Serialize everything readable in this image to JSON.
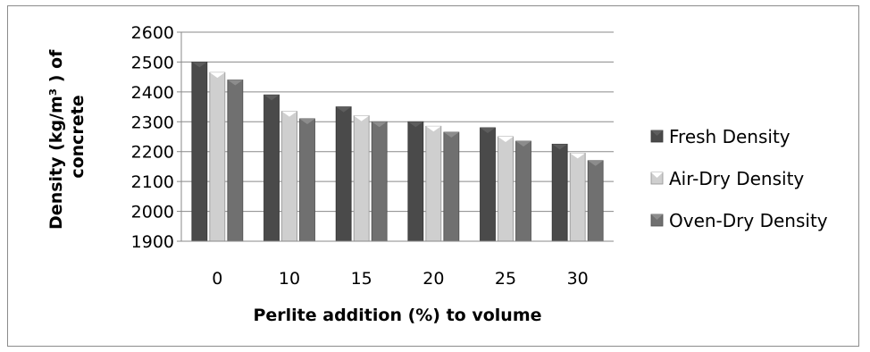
{
  "chart_data": {
    "type": "bar",
    "title": "",
    "xlabel": "Perlite addition (%) to volume",
    "ylabel_line1": "Density (kg/m³ ) of",
    "ylabel_line2": "concrete",
    "ylim": [
      1900,
      2600
    ],
    "yticks": [
      1900,
      2000,
      2100,
      2200,
      2300,
      2400,
      2500,
      2600
    ],
    "categories": [
      "0",
      "10",
      "15",
      "20",
      "25",
      "30"
    ],
    "grid": true,
    "legend_position": "right",
    "series": [
      {
        "name": "Fresh Density",
        "values": [
          2500,
          2390,
          2350,
          2300,
          2280,
          2225
        ],
        "color": "#4a4a4a"
      },
      {
        "name": "Air-Dry Density",
        "values": [
          2465,
          2335,
          2320,
          2285,
          2250,
          2195
        ],
        "color": "#cfcfcf"
      },
      {
        "name": "Oven-Dry Density",
        "values": [
          2440,
          2310,
          2300,
          2265,
          2235,
          2170
        ],
        "color": "#707070"
      }
    ]
  }
}
